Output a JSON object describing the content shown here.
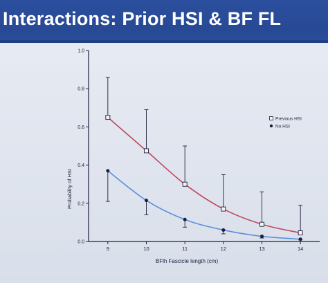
{
  "slide": {
    "title": "Interactions: Prior HSI & BF FL"
  },
  "chart_data": {
    "type": "line",
    "xlabel": "BFlh Fascicle length (cm)",
    "ylabel": "Probability of HSI",
    "xlim": [
      8.5,
      14.5
    ],
    "ylim": [
      0,
      1.0
    ],
    "xticks": [
      9,
      10,
      11,
      12,
      13,
      14
    ],
    "xtick_labels": [
      "9",
      "10",
      "11",
      "12",
      "13",
      "14"
    ],
    "yticks": [
      0,
      0.2,
      0.4,
      0.6,
      0.8,
      1.0
    ],
    "ytick_labels": [
      "0.0",
      "0.2",
      "0.4",
      "0.6",
      "0.8",
      "1.0"
    ],
    "legend_position": "right",
    "grid": false,
    "series": [
      {
        "name": "Previous HSI",
        "marker": "open-square",
        "color": "#c0485e",
        "x": [
          9,
          10,
          11,
          12,
          13,
          14
        ],
        "values": [
          0.65,
          0.475,
          0.3,
          0.17,
          0.09,
          0.045
        ],
        "error_upper": [
          0.86,
          0.69,
          0.5,
          0.35,
          0.26,
          0.19
        ]
      },
      {
        "name": "No HSI",
        "marker": "filled-circle",
        "color": "#5a8fdc",
        "x": [
          9,
          10,
          11,
          12,
          13,
          14
        ],
        "values": [
          0.37,
          0.215,
          0.115,
          0.06,
          0.027,
          0.012
        ],
        "error_lower": [
          0.21,
          0.14,
          0.075,
          0.04,
          0.018,
          0.008
        ]
      }
    ]
  }
}
